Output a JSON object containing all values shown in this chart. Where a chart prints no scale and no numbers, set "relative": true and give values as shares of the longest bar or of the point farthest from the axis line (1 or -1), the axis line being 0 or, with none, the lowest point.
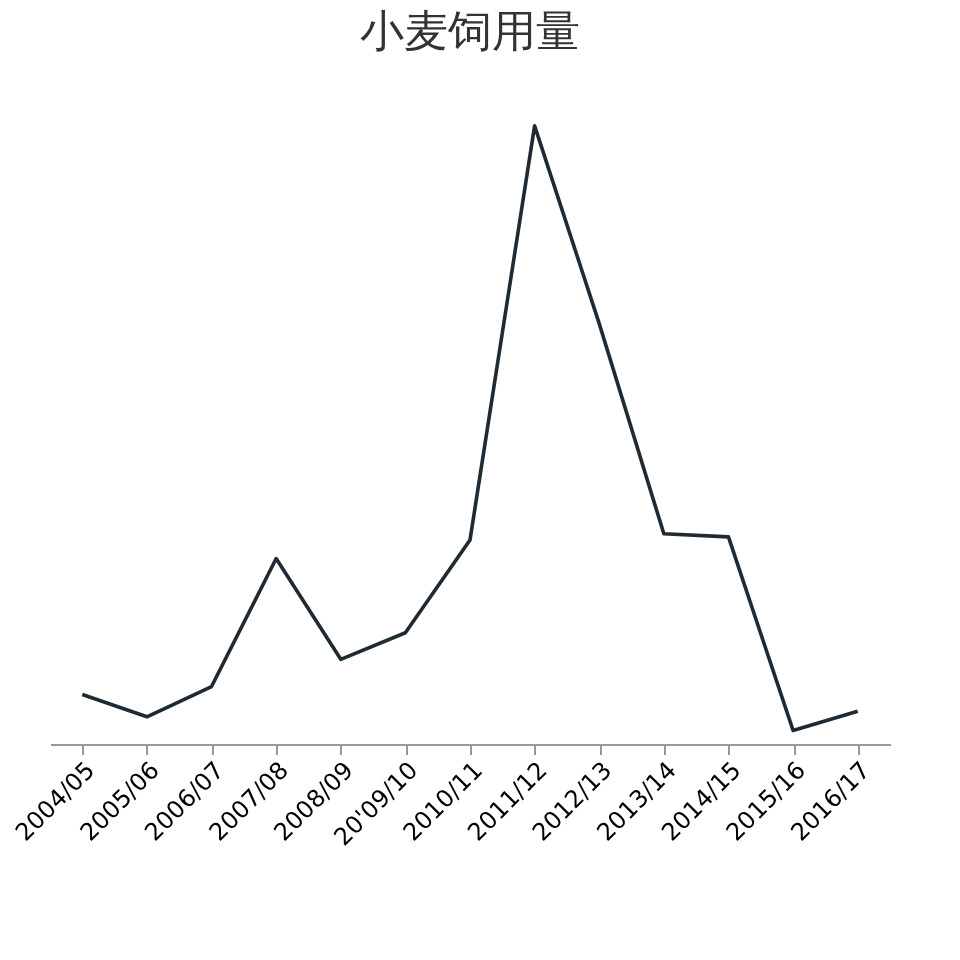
{
  "chart_data": {
    "type": "line",
    "title": "小麦饲用量",
    "relative": true,
    "legend": false,
    "categories": [
      "2004/05",
      "2005/06",
      "2006/07",
      "2007/08",
      "2008/09",
      "20'09/10",
      "2010/11",
      "2011/12",
      "2012/13",
      "2013/14",
      "2014/15",
      "2015/16",
      "2016/17"
    ],
    "series": [
      {
        "color": "#1f2a33",
        "values": [
          0.08,
          0.044,
          0.093,
          0.3,
          0.137,
          0.18,
          0.33,
          1,
          0.68,
          0.34,
          0.335,
          0.022,
          0.053
        ]
      }
    ]
  }
}
